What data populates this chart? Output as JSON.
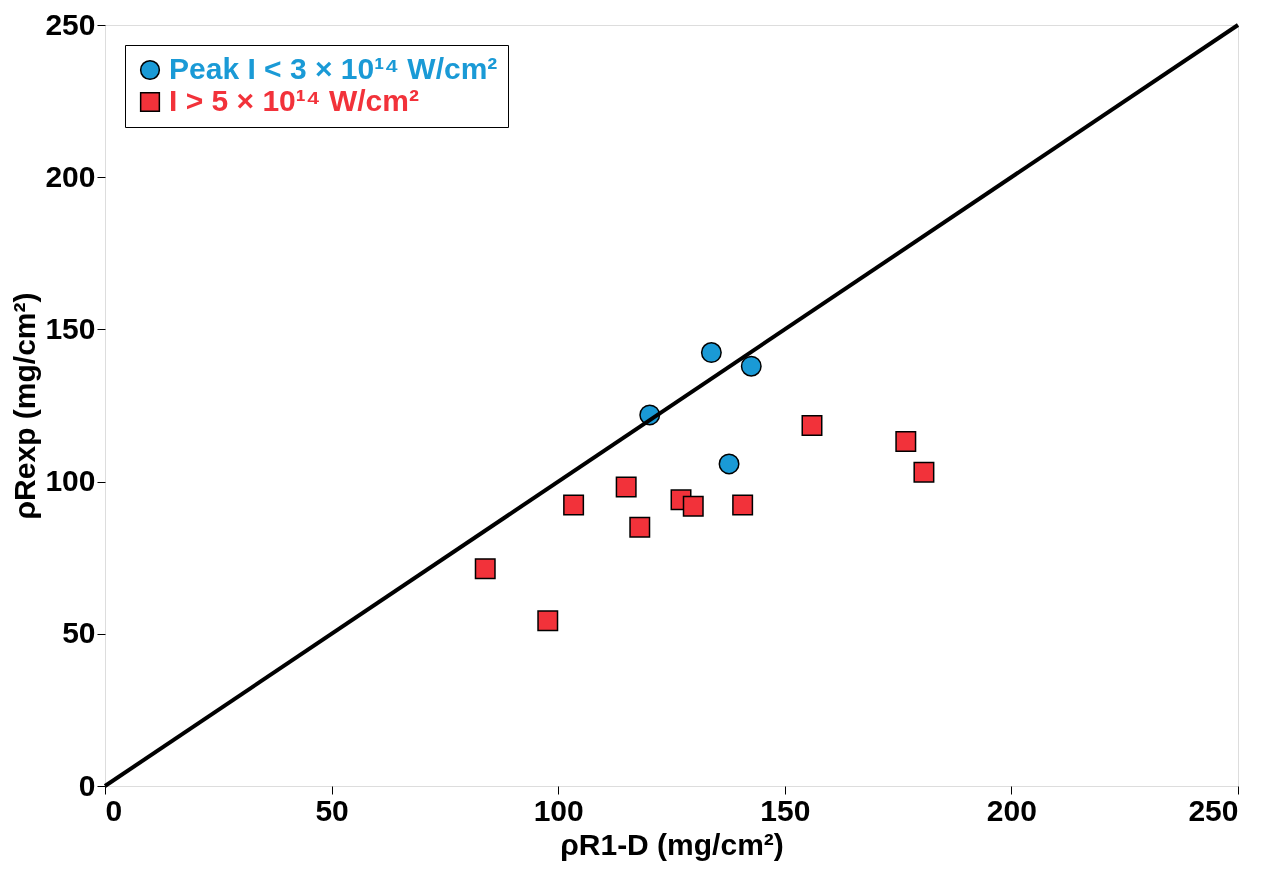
{
  "chart_data": {
    "type": "scatter",
    "xlabel": "ρR1-D (mg/cm²)",
    "ylabel": "ρRexp (mg/cm²)",
    "xlim": [
      0,
      250
    ],
    "ylim": [
      0,
      250
    ],
    "xticks": [
      0,
      50,
      100,
      150,
      200,
      250
    ],
    "yticks": [
      0,
      50,
      100,
      150,
      200,
      250
    ],
    "grid": false,
    "legend": "top left",
    "series": [
      {
        "name": "Peak I < 3 × 10¹⁴ W/cm²",
        "color": "#1a9ad6",
        "marker": "circle",
        "x": [
          120.2,
          133.8,
          142.6,
          137.7
        ],
        "values": [
          121.9,
          142.4,
          137.9,
          105.8
        ]
      },
      {
        "name": "I > 5 × 10¹⁴ W/cm²",
        "color": "#f2323a",
        "marker": "square",
        "x": [
          83.9,
          97.7,
          103.4,
          115,
          118,
          127.1,
          129.8,
          140.7,
          156,
          176.7,
          180.7
        ],
        "values": [
          71.4,
          54.3,
          92.3,
          98.2,
          85,
          94,
          91.9,
          92.3,
          118.4,
          113.2,
          103.1
        ]
      },
      {
        "type": "line",
        "color": "#000000",
        "line_style": "solid",
        "x": [
          0,
          250
        ],
        "values": [
          0,
          250
        ]
      }
    ]
  }
}
